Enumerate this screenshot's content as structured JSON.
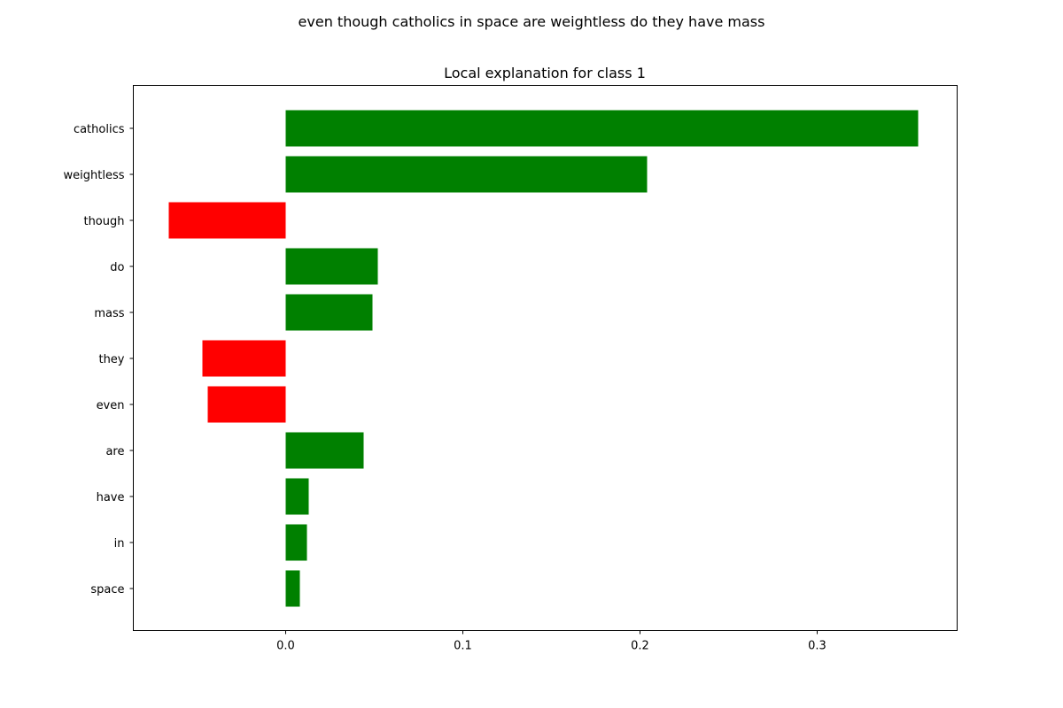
{
  "chart_data": {
    "type": "bar",
    "orientation": "horizontal",
    "suptitle": "even though catholics in space are weightless do they have mass",
    "title": "Local explanation for class 1",
    "xlabel": "",
    "ylabel": "",
    "categories": [
      "catholics",
      "weightless",
      "though",
      "do",
      "mass",
      "they",
      "even",
      "are",
      "have",
      "in",
      "space"
    ],
    "values": [
      0.357,
      0.204,
      -0.066,
      0.052,
      0.049,
      -0.047,
      -0.044,
      0.044,
      0.013,
      0.012,
      0.008
    ],
    "xlim": [
      -0.086,
      0.379
    ],
    "xticks": [
      0.0,
      0.1,
      0.2,
      0.3
    ],
    "xtick_labels": [
      "0.0",
      "0.1",
      "0.2",
      "0.3"
    ],
    "grid": false,
    "colors": {
      "positive": "#008000",
      "negative": "#ff0000"
    }
  }
}
